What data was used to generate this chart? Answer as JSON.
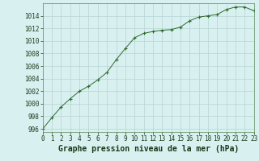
{
  "x": [
    0,
    1,
    2,
    3,
    4,
    5,
    6,
    7,
    8,
    9,
    10,
    11,
    12,
    13,
    14,
    15,
    16,
    17,
    18,
    19,
    20,
    21,
    22,
    23
  ],
  "y": [
    996.0,
    997.8,
    999.5,
    1000.8,
    1002.0,
    1002.8,
    1003.8,
    1005.0,
    1007.0,
    1008.8,
    1010.5,
    1011.2,
    1011.5,
    1011.7,
    1011.8,
    1012.2,
    1013.2,
    1013.8,
    1014.0,
    1014.2,
    1015.0,
    1015.4,
    1015.4,
    1014.8
  ],
  "line_color": "#2d6a2d",
  "marker": "+",
  "marker_size": 3,
  "bg_color": "#d8f0f0",
  "grid_color": "#b8d4d4",
  "xlabel": "Graphe pression niveau de la mer (hPa)",
  "xlabel_fontsize": 7,
  "ylabel_ticks": [
    996,
    998,
    1000,
    1002,
    1004,
    1006,
    1008,
    1010,
    1012,
    1014
  ],
  "xlim": [
    0,
    23
  ],
  "ylim": [
    995.5,
    1016.0
  ],
  "xtick_labels": [
    "0",
    "1",
    "2",
    "3",
    "4",
    "5",
    "6",
    "7",
    "8",
    "9",
    "10",
    "11",
    "12",
    "13",
    "14",
    "15",
    "16",
    "17",
    "18",
    "19",
    "20",
    "21",
    "22",
    "23"
  ],
  "tick_fontsize": 5.5
}
